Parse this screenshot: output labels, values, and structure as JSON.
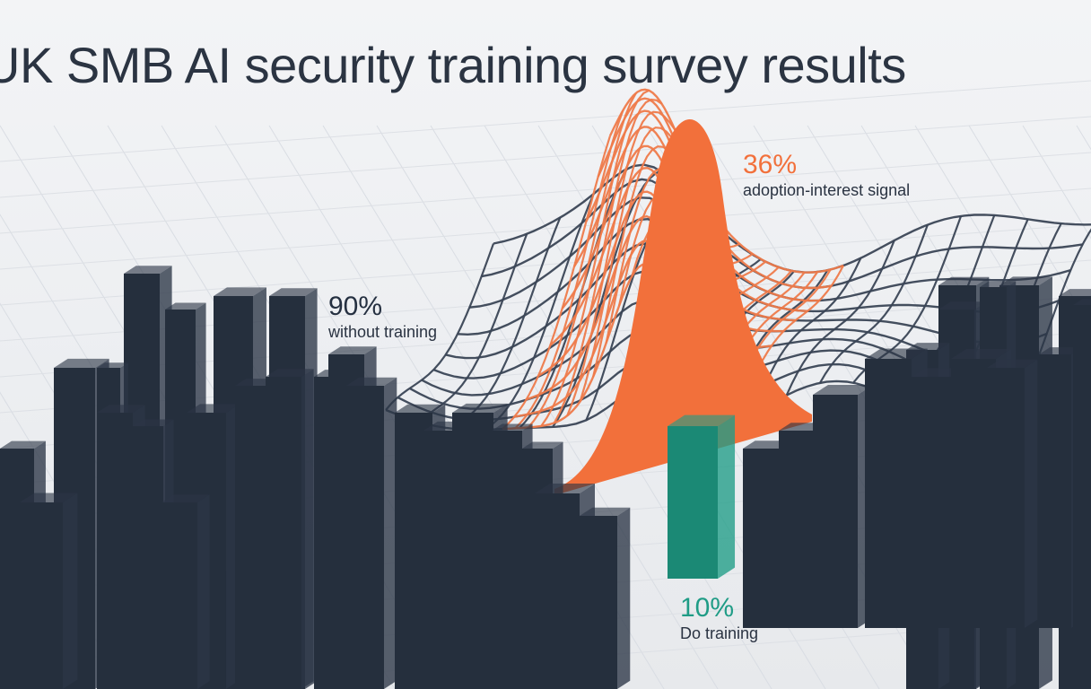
{
  "title": "UK SMB AI security training survey results",
  "colors": {
    "without_training": "#2b3646",
    "do_training": "#1f9c86",
    "adoption_interest": "#f2703b",
    "mesh_dark": "#3a4455",
    "mesh_orange": "#ee7a4a"
  },
  "chart_data": {
    "type": "bar",
    "title": "UK SMB AI security training survey results",
    "unit": "%",
    "grid": false,
    "series": [
      {
        "name": "without training",
        "value": 90,
        "value_label": "90%"
      },
      {
        "name": "Do training",
        "value": 10,
        "value_label": "10%"
      },
      {
        "name": "adoption-interest signal",
        "value": 36,
        "value_label": "36%"
      }
    ]
  }
}
